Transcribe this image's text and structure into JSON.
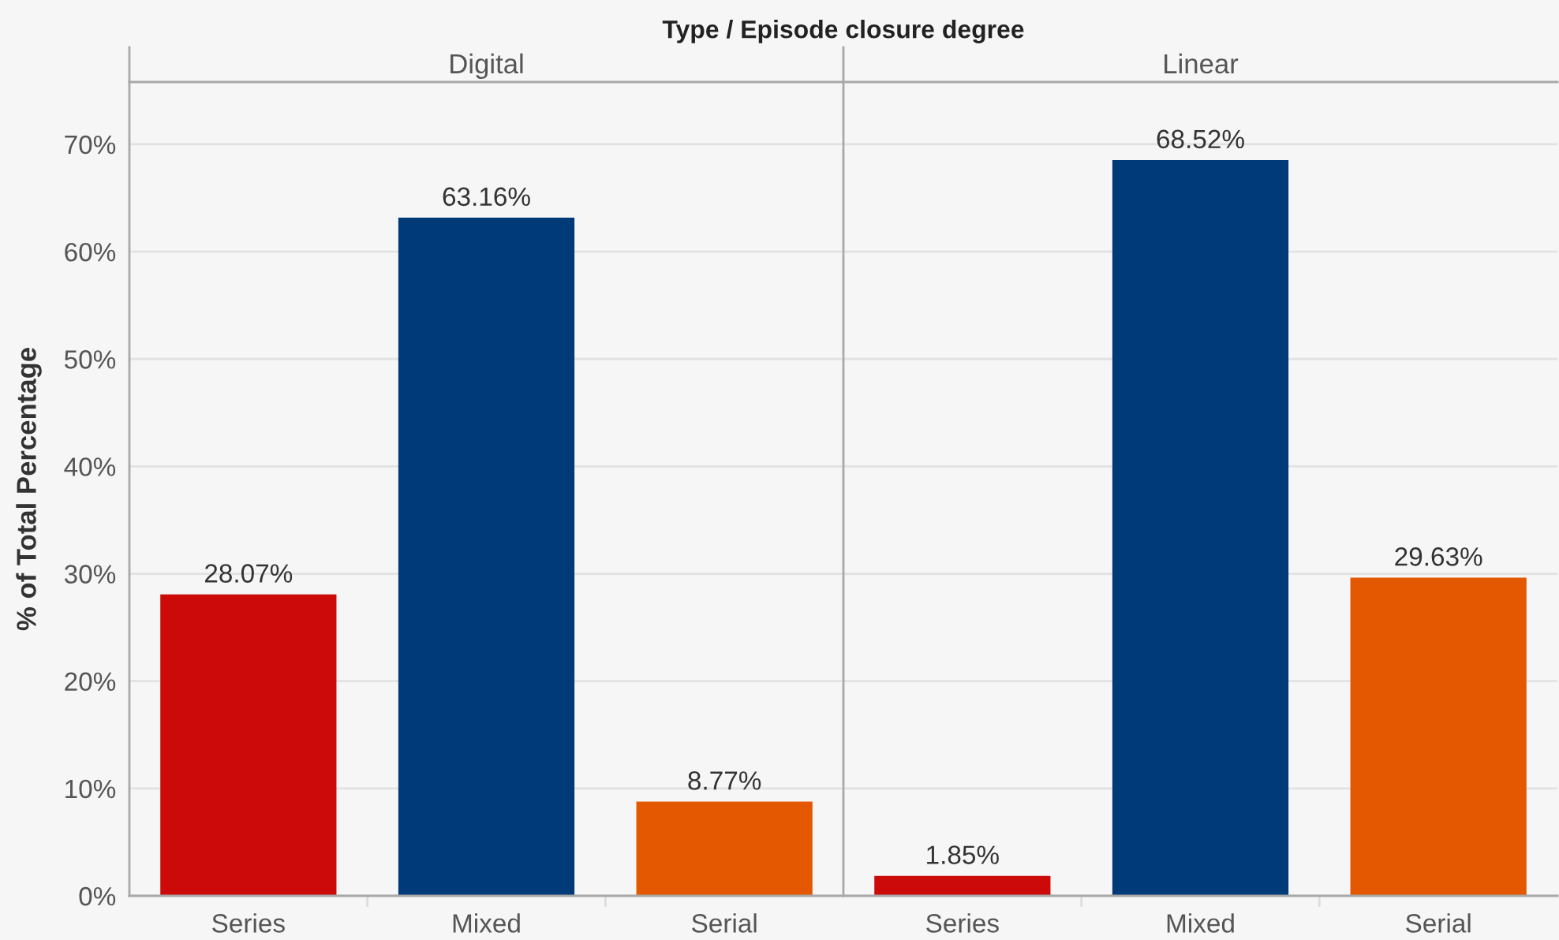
{
  "chart_data": [
    {
      "type": "bar",
      "title": "Digital",
      "ylabel": "% of Total Percentage",
      "annotations": [
        "Type / Episode closure degree"
      ],
      "categories": [
        "Series",
        "Mixed",
        "Serial"
      ],
      "values": [
        28.07,
        63.16,
        8.77
      ],
      "colors": [
        "#cc0a0a",
        "#003a79",
        "#e35800"
      ],
      "value_labels": [
        "28.07%",
        "63.16%",
        "8.77%"
      ],
      "ylim": [
        0,
        75.8
      ],
      "yticks": [
        {
          "value": 0,
          "label": "0%"
        },
        {
          "value": 10,
          "label": "10%"
        },
        {
          "value": 20,
          "label": "20%"
        },
        {
          "value": 30,
          "label": "30%"
        },
        {
          "value": 40,
          "label": "40%"
        },
        {
          "value": 50,
          "label": "50%"
        },
        {
          "value": 60,
          "label": "60%"
        },
        {
          "value": 70,
          "label": "70%"
        }
      ],
      "grid": "y"
    },
    {
      "type": "bar",
      "title": "Linear",
      "categories": [
        "Series",
        "Mixed",
        "Serial"
      ],
      "values": [
        1.85,
        68.52,
        29.63
      ],
      "colors": [
        "#cc0a0a",
        "#003a79",
        "#e35800"
      ],
      "value_labels": [
        "1.85%",
        "68.52%",
        "29.63%"
      ],
      "ylim": [
        0,
        75.8
      ],
      "yticks": [
        0,
        10,
        20,
        30,
        40,
        50,
        60,
        70
      ],
      "tick_labels": "x",
      "grid": "y"
    }
  ]
}
